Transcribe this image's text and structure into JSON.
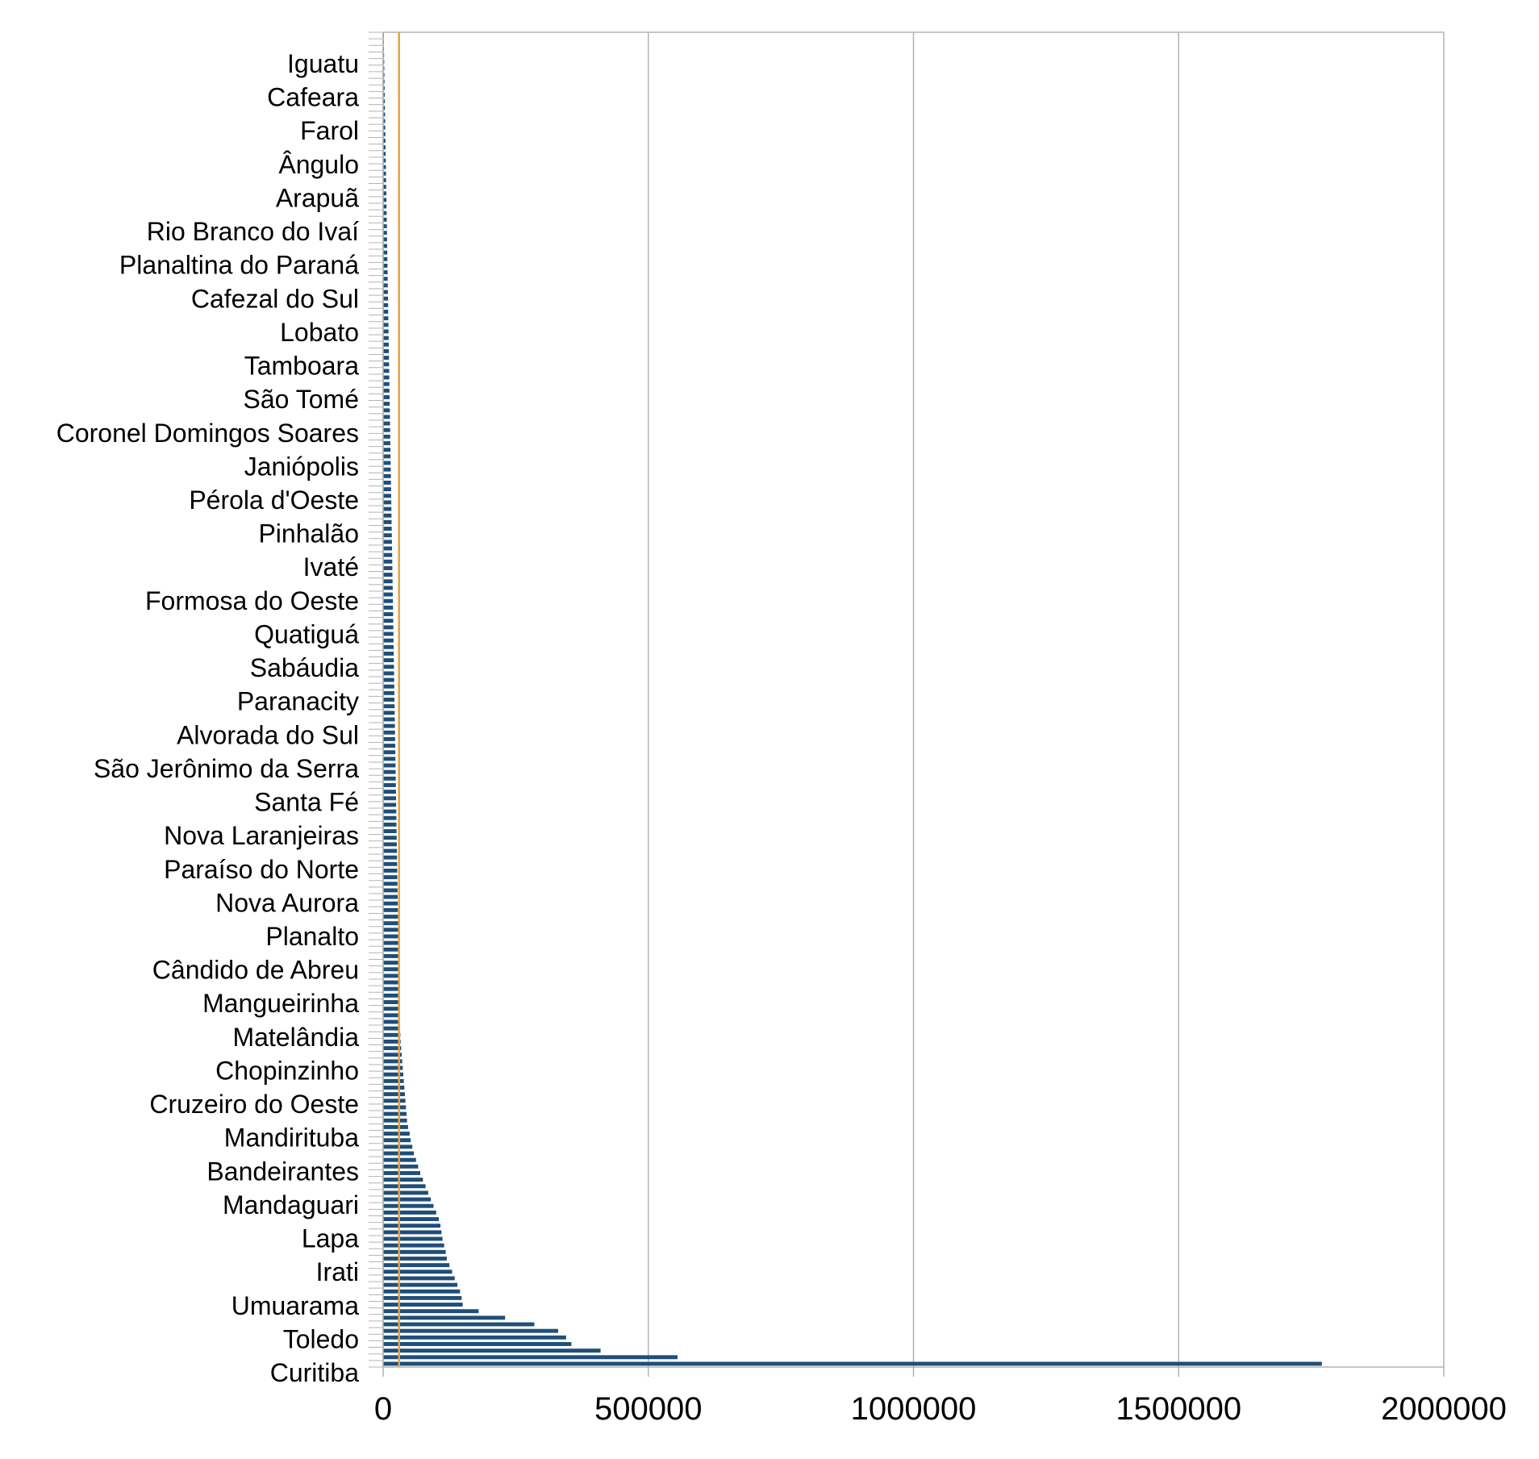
{
  "chart_data": {
    "type": "bar",
    "orientation": "horizontal",
    "title": "",
    "xlabel": "",
    "ylabel": "",
    "xlim": [
      0,
      2000000
    ],
    "x_ticks": [
      "0",
      "500000",
      "1000000",
      "1500000",
      "2000000"
    ],
    "x_tick_values": [
      0,
      500000,
      1000000,
      1500000,
      2000000
    ],
    "grid": "vertical",
    "legend": "none",
    "colors": {
      "bar": "#1f4e79",
      "reference_line": "#e8a33d",
      "grid": "#b3b3b3",
      "axis": "#b3b3b3"
    },
    "reference_line_value": 30000,
    "labeled_categories": [
      "Iguatu",
      "Cafeara",
      "Farol",
      "Ângulo",
      "Arapuã",
      "Rio Branco do Ivaí",
      "Planaltina do Paraná",
      "Cafezal do Sul",
      "Lobato",
      "Tamboara",
      "São Tomé",
      "Coronel Domingos Soares",
      "Janiópolis",
      "Pérola d'Oeste",
      "Pinhalão",
      "Ivaté",
      "Formosa do Oeste",
      "Quatiguá",
      "Sabáudia",
      "Paranacity",
      "Alvorada do Sul",
      "São Jerônimo da Serra",
      "Santa Fé",
      "Nova Laranjeiras",
      "Paraíso do Norte",
      "Nova Aurora",
      "Planalto",
      "Cândido de Abreu",
      "Mangueirinha",
      "Matelândia",
      "Chopinzinho",
      "Cruzeiro do Oeste",
      "Mandirituba",
      "Bandeirantes",
      "Mandaguari",
      "Lapa",
      "Irati",
      "Umuarama",
      "Toledo",
      "Curitiba"
    ],
    "series": [
      {
        "values": [
          1200,
          1400,
          1600,
          1800,
          2000,
          2200,
          2400,
          2600,
          2800,
          3000,
          3200,
          3400,
          3600,
          3800,
          4000,
          4200,
          4400,
          4600,
          4800,
          5000,
          5200,
          5400,
          5600,
          5800,
          6000,
          6200,
          6400,
          6600,
          6800,
          7000,
          7200,
          7400,
          7600,
          7800,
          8000,
          8200,
          8400,
          8600,
          8800,
          9000,
          9200,
          9400,
          9600,
          9800,
          10000,
          10200,
          10400,
          10600,
          10800,
          11000,
          11200,
          11400,
          11600,
          11800,
          12000,
          12200,
          12400,
          12600,
          12800,
          13000,
          13200,
          13400,
          13600,
          13800,
          14000,
          14200,
          14400,
          14600,
          14800,
          15000,
          15200,
          15400,
          15600,
          15800,
          16000,
          16200,
          16400,
          16600,
          16800,
          17000,
          17200,
          17400,
          17600,
          17800,
          18000,
          18200,
          18400,
          18600,
          18800,
          19000,
          19200,
          19400,
          19600,
          19800,
          20000,
          20200,
          20400,
          20600,
          20800,
          21000,
          21200,
          21400,
          21600,
          21800,
          22000,
          22200,
          22400,
          22600,
          22800,
          23000,
          23200,
          23400,
          23600,
          23800,
          24000,
          24200,
          24400,
          24600,
          24800,
          25000,
          25200,
          25400,
          25600,
          25800,
          26000,
          26200,
          26400,
          26600,
          26800,
          27000,
          27200,
          27400,
          27600,
          27800,
          28000,
          28200,
          28400,
          28600,
          28800,
          29000,
          29200,
          29400,
          29600,
          29800,
          30000,
          30200,
          30400,
          30600,
          30800,
          31000,
          31500,
          32000,
          32500,
          33000,
          34000,
          35000,
          36000,
          37000,
          38000,
          39000,
          40000,
          41000,
          42000,
          43000,
          44000,
          45000,
          47000,
          50000,
          52000,
          55000,
          58000,
          62000,
          66000,
          70000,
          75000,
          80000,
          85000,
          90000,
          95000,
          100000,
          105000,
          108000,
          110000,
          112000,
          115000,
          118000,
          120000,
          125000,
          130000,
          135000,
          140000,
          145000,
          148000,
          150000,
          180000,
          230000,
          285000,
          330000,
          345000,
          355000,
          410000,
          555000,
          1770000
        ]
      }
    ]
  }
}
